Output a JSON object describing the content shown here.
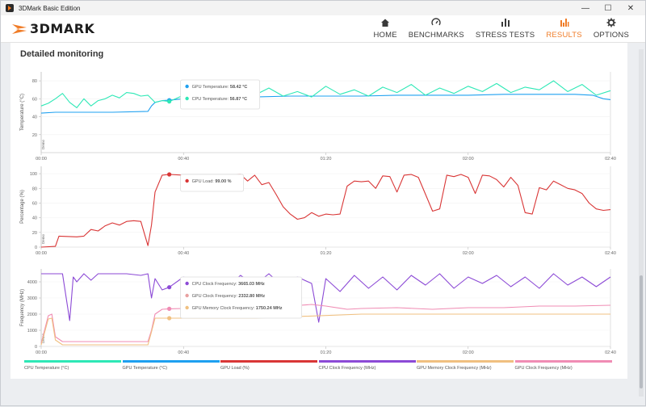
{
  "window": {
    "title": "3DMark Basic Edition",
    "controls": {
      "minimize": "—",
      "maximize": "☐",
      "close": "✕"
    }
  },
  "logo": {
    "text": "3DMARK",
    "accent": "#f07d28"
  },
  "nav": {
    "items": [
      {
        "label": "HOME",
        "icon": "home-icon",
        "active": false
      },
      {
        "label": "BENCHMARKS",
        "icon": "gauge-icon",
        "active": false
      },
      {
        "label": "STRESS TESTS",
        "icon": "bars-icon",
        "active": false
      },
      {
        "label": "RESULTS",
        "icon": "results-icon",
        "active": true
      },
      {
        "label": "OPTIONS",
        "icon": "gear-icon",
        "active": false
      }
    ]
  },
  "section": {
    "title": "Detailed monitoring"
  },
  "timeline": {
    "ticks": [
      "00:00",
      "00:40",
      "01:20",
      "02:00",
      "02:40"
    ],
    "end_seconds": 160
  },
  "demo_label": "Demo",
  "charts": [
    {
      "ylabel": "Temperature (°C)",
      "yticks": [
        20,
        40,
        60,
        80
      ],
      "ymin": 0,
      "ymax": 90,
      "tooltip": {
        "t": 36,
        "rows": [
          {
            "label": "GPU Temperature:",
            "value": "58.42 °C",
            "color": "#1ea0f0"
          },
          {
            "label": "CPU Temperature:",
            "value": "56.87 °C",
            "color": "#2ee8b6"
          }
        ]
      }
    },
    {
      "ylabel": "Percentage (%)",
      "yticks": [
        0,
        20,
        40,
        60,
        80,
        100
      ],
      "ymin": 0,
      "ymax": 110,
      "tooltip": {
        "t": 36,
        "rows": [
          {
            "label": "GPU Load:",
            "value": "99.00 %",
            "color": "#d93636"
          }
        ]
      }
    },
    {
      "ylabel": "Frequency (MHz)",
      "yticks": [
        0,
        1000,
        2000,
        3000,
        4000
      ],
      "ymin": 0,
      "ymax": 4800,
      "tooltip": {
        "t": 36,
        "rows": [
          {
            "label": "CPU Clock Frequency:",
            "value": "3665.03 MHz",
            "color": "#8c4ad6"
          },
          {
            "label": "GPU Clock Frequency:",
            "value": "2332.80 MHz",
            "color": "#e8a0a0"
          },
          {
            "label": "GPU Memory Clock Frequency:",
            "value": "1750.24 MHz",
            "color": "#f0c080"
          }
        ]
      }
    }
  ],
  "legend": [
    {
      "label": "CPU Temperature (°C)",
      "color": "#2ee8b6"
    },
    {
      "label": "GPU Temperature (°C)",
      "color": "#1ea0f0"
    },
    {
      "label": "GPU Load (%)",
      "color": "#d93636"
    },
    {
      "label": "CPU Clock Frequency (MHz)",
      "color": "#8c4ad6"
    },
    {
      "label": "GPU Memory Clock Frequency (MHz)",
      "color": "#f0c080"
    },
    {
      "label": "GPU Clock Frequency (MHz)",
      "color": "#f08cb4"
    }
  ],
  "chart_data": [
    {
      "type": "line",
      "ylabel": "Temperature (°C)",
      "ylim": [
        0,
        90
      ],
      "x_unit": "seconds",
      "series": [
        {
          "name": "GPU Temperature (°C)",
          "color": "#1ea0f0",
          "x": [
            0,
            4,
            10,
            20,
            30,
            31,
            32,
            34,
            36,
            40,
            50,
            60,
            70,
            80,
            90,
            100,
            110,
            120,
            130,
            140,
            150,
            155,
            158,
            160
          ],
          "y": [
            44,
            45,
            45,
            45,
            46,
            52,
            56,
            58,
            58.4,
            60,
            61,
            62,
            63,
            63,
            63,
            64,
            64,
            64,
            65,
            65,
            65,
            64,
            60,
            59
          ]
        },
        {
          "name": "CPU Temperature (°C)",
          "color": "#2ee8b6",
          "x": [
            0,
            2,
            4,
            6,
            8,
            10,
            12,
            14,
            16,
            18,
            20,
            22,
            24,
            26,
            28,
            30,
            32,
            34,
            36,
            40,
            44,
            48,
            52,
            56,
            60,
            64,
            68,
            72,
            76,
            80,
            84,
            88,
            92,
            96,
            100,
            104,
            108,
            112,
            116,
            120,
            124,
            128,
            132,
            136,
            140,
            144,
            148,
            152,
            156,
            160
          ],
          "y": [
            52,
            55,
            60,
            66,
            56,
            50,
            60,
            52,
            58,
            60,
            64,
            61,
            67,
            66,
            63,
            64,
            56,
            58,
            57,
            64,
            69,
            62,
            60,
            66,
            64,
            72,
            63,
            68,
            62,
            74,
            65,
            70,
            63,
            73,
            67,
            76,
            64,
            72,
            66,
            74,
            68,
            77,
            67,
            73,
            70,
            80,
            68,
            76,
            64,
            69
          ]
        }
      ]
    },
    {
      "type": "line",
      "ylabel": "Percentage (%)",
      "ylim": [
        0,
        110
      ],
      "x_unit": "seconds",
      "series": [
        {
          "name": "GPU Load (%)",
          "color": "#d93636",
          "x": [
            0,
            4,
            5,
            10,
            12,
            14,
            16,
            18,
            20,
            22,
            24,
            26,
            28,
            30,
            31,
            32,
            34,
            36,
            40,
            44,
            48,
            52,
            56,
            58,
            60,
            62,
            64,
            66,
            68,
            70,
            72,
            74,
            76,
            78,
            80,
            82,
            84,
            86,
            88,
            90,
            92,
            94,
            96,
            98,
            100,
            102,
            104,
            106,
            108,
            110,
            112,
            114,
            116,
            118,
            120,
            122,
            124,
            126,
            128,
            130,
            132,
            134,
            136,
            138,
            140,
            142,
            144,
            146,
            148,
            150,
            152,
            154,
            156,
            158,
            160
          ],
          "y": [
            0,
            1,
            15,
            14,
            15,
            24,
            22,
            29,
            33,
            30,
            35,
            36,
            35,
            2,
            30,
            75,
            98,
            99,
            98,
            95,
            92,
            97,
            99,
            90,
            98,
            85,
            88,
            72,
            55,
            45,
            38,
            40,
            47,
            42,
            45,
            44,
            45,
            83,
            90,
            89,
            90,
            80,
            97,
            96,
            75,
            98,
            99,
            95,
            72,
            49,
            52,
            98,
            96,
            99,
            95,
            73,
            98,
            97,
            92,
            82,
            95,
            84,
            47,
            45,
            81,
            78,
            90,
            85,
            80,
            78,
            73,
            60,
            52,
            50,
            51
          ]
        }
      ]
    },
    {
      "type": "line",
      "ylabel": "Frequency (MHz)",
      "ylim": [
        0,
        4800
      ],
      "x_unit": "seconds",
      "series": [
        {
          "name": "CPU Clock Frequency (MHz)",
          "color": "#8c4ad6",
          "x": [
            0,
            4,
            6,
            8,
            9,
            10,
            12,
            14,
            16,
            20,
            24,
            28,
            30,
            31,
            32,
            34,
            36,
            40,
            44,
            48,
            52,
            56,
            60,
            64,
            68,
            72,
            76,
            78,
            80,
            84,
            88,
            92,
            96,
            100,
            104,
            108,
            112,
            116,
            120,
            124,
            128,
            132,
            136,
            140,
            144,
            148,
            152,
            156,
            160
          ],
          "y": [
            4500,
            4500,
            4500,
            1600,
            4300,
            4000,
            4500,
            4100,
            4500,
            4500,
            4500,
            4400,
            4500,
            3000,
            4200,
            3500,
            3665,
            4300,
            3900,
            4200,
            3600,
            4400,
            3800,
            4500,
            3700,
            4300,
            3900,
            1500,
            4200,
            3400,
            4400,
            3600,
            4300,
            3500,
            4400,
            3800,
            4500,
            3600,
            4300,
            3900,
            4400,
            3700,
            4300,
            3600,
            4500,
            3800,
            4300,
            3700,
            4300
          ]
        },
        {
          "name": "GPU Clock Frequency (MHz)",
          "color": "#f08cb4",
          "x": [
            0,
            2,
            3,
            4,
            6,
            10,
            20,
            30,
            31,
            32,
            34,
            36,
            40,
            50,
            60,
            70,
            76,
            78,
            80,
            86,
            90,
            100,
            110,
            120,
            130,
            140,
            150,
            160
          ],
          "y": [
            200,
            1900,
            2000,
            600,
            300,
            300,
            300,
            300,
            1000,
            2000,
            2300,
            2330,
            2350,
            2380,
            2400,
            2500,
            2600,
            2550,
            2500,
            2300,
            2350,
            2400,
            2300,
            2400,
            2400,
            2500,
            2500,
            2550
          ]
        },
        {
          "name": "GPU Memory Clock Frequency (MHz)",
          "color": "#f0c080",
          "x": [
            0,
            2,
            3,
            4,
            6,
            10,
            20,
            30,
            31,
            32,
            34,
            36,
            60,
            90,
            120,
            160
          ],
          "y": [
            100,
            1700,
            1750,
            400,
            100,
            100,
            100,
            100,
            900,
            1750,
            1750,
            1750,
            1750,
            2000,
            2000,
            2000
          ]
        }
      ]
    }
  ]
}
